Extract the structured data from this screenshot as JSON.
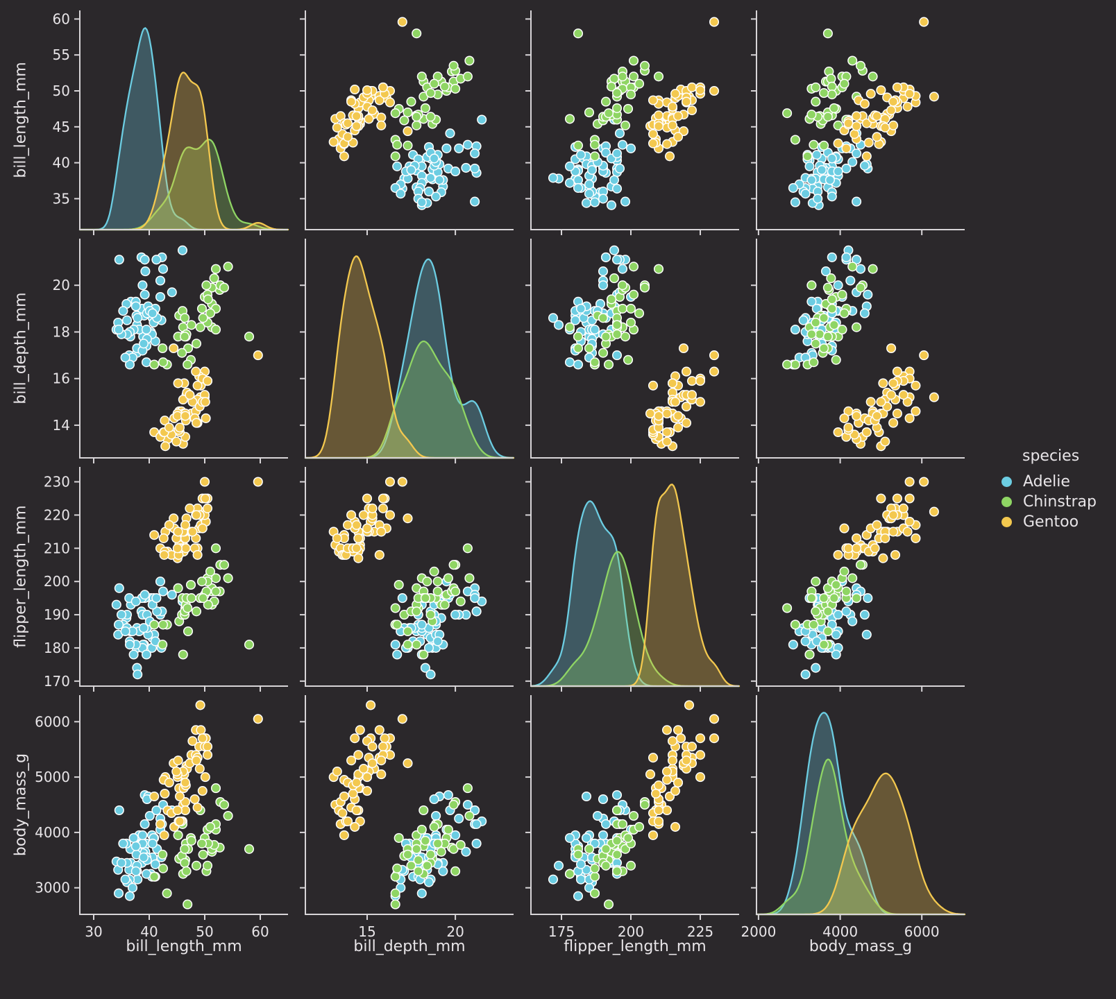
{
  "figure": {
    "background": "#2b282b",
    "text_color": "#e8e5e8",
    "axis_color": "#d8d5d8",
    "marker_edge": "#ffffff"
  },
  "legend": {
    "title": "species",
    "items": [
      {
        "label": "Adelie",
        "color": "#6ccde2"
      },
      {
        "label": "Chinstrap",
        "color": "#8fd564"
      },
      {
        "label": "Gentoo",
        "color": "#f3c84f"
      }
    ]
  },
  "chart_data": {
    "type": "scatter-matrix",
    "note": "seaborn-style pairplot of penguins dataset; diagonal = kde per species, off-diagonal = scatter; row variable = y, column variable = x",
    "diagonal": "kde",
    "grid": false,
    "legend_position": "right",
    "variables": [
      {
        "key": "bill_length_mm",
        "label": "bill_length_mm",
        "xlim": [
          27.5,
          65
        ],
        "ylim": [
          30.7,
          61.2
        ],
        "xticks": [
          30,
          40,
          50,
          60
        ],
        "yticks": [
          35,
          40,
          45,
          50,
          55,
          60
        ]
      },
      {
        "key": "bill_depth_mm",
        "label": "bill_depth_mm",
        "xlim": [
          11.5,
          23.3
        ],
        "ylim": [
          12.6,
          22.0
        ],
        "xticks": [
          15,
          20
        ],
        "yticks": [
          14,
          16,
          18,
          20
        ]
      },
      {
        "key": "flipper_length_mm",
        "label": "flipper_length_mm",
        "xlim": [
          164,
          239
        ],
        "ylim": [
          168.5,
          234.5
        ],
        "xticks": [
          175,
          200,
          225
        ],
        "yticks": [
          170,
          180,
          190,
          200,
          210,
          220,
          230
        ]
      },
      {
        "key": "body_mass_g",
        "label": "body_mass_g",
        "xlim": [
          1950,
          7050
        ],
        "ylim": [
          2520,
          6480
        ],
        "xticks": [
          2000,
          4000,
          6000
        ],
        "yticks": [
          3000,
          4000,
          5000,
          6000
        ]
      }
    ],
    "series": [
      {
        "name": "Adelie",
        "color": "#6ccde2",
        "points": [
          [
            39.1,
            18.7,
            181,
            3750
          ],
          [
            39.5,
            17.4,
            186,
            3800
          ],
          [
            40.3,
            18.0,
            195,
            3250
          ],
          [
            36.7,
            19.3,
            193,
            3450
          ],
          [
            39.3,
            20.6,
            190,
            3650
          ],
          [
            38.9,
            17.8,
            181,
            3625
          ],
          [
            39.2,
            19.6,
            195,
            4675
          ],
          [
            34.1,
            18.1,
            193,
            3475
          ],
          [
            42.0,
            20.2,
            190,
            4250
          ],
          [
            37.8,
            17.1,
            186,
            3300
          ],
          [
            37.8,
            17.3,
            180,
            3700
          ],
          [
            41.1,
            17.6,
            182,
            3200
          ],
          [
            38.6,
            21.2,
            191,
            3800
          ],
          [
            34.6,
            21.1,
            198,
            4400
          ],
          [
            36.6,
            17.8,
            185,
            3700
          ],
          [
            38.7,
            19.0,
            195,
            3450
          ],
          [
            42.5,
            20.7,
            197,
            4500
          ],
          [
            34.4,
            18.4,
            184,
            3325
          ],
          [
            46.0,
            21.5,
            194,
            4200
          ],
          [
            37.8,
            18.3,
            174,
            3400
          ],
          [
            37.7,
            18.7,
            180,
            3600
          ],
          [
            35.9,
            19.2,
            189,
            3800
          ],
          [
            38.2,
            18.1,
            185,
            3950
          ],
          [
            38.8,
            17.2,
            180,
            3800
          ],
          [
            35.3,
            18.9,
            187,
            3800
          ],
          [
            40.6,
            18.6,
            183,
            3550
          ],
          [
            40.5,
            17.9,
            187,
            3200
          ],
          [
            37.9,
            18.6,
            172,
            3150
          ],
          [
            40.5,
            18.9,
            180,
            3950
          ],
          [
            39.5,
            16.7,
            178,
            3250
          ],
          [
            37.2,
            18.1,
            178,
            3900
          ],
          [
            39.5,
            18.1,
            186,
            3550
          ],
          [
            40.9,
            18.9,
            184,
            3900
          ],
          [
            36.4,
            17.0,
            195,
            3325
          ],
          [
            39.2,
            21.1,
            196,
            4150
          ],
          [
            38.8,
            20.0,
            190,
            3950
          ],
          [
            42.2,
            18.5,
            180,
            3550
          ],
          [
            37.6,
            19.3,
            181,
            3300
          ],
          [
            39.8,
            19.1,
            184,
            4650
          ],
          [
            36.5,
            18.0,
            182,
            3150
          ],
          [
            40.8,
            18.4,
            195,
            3900
          ],
          [
            36.0,
            18.5,
            186,
            3100
          ],
          [
            44.1,
            19.7,
            196,
            4400
          ],
          [
            37.0,
            16.9,
            185,
            3000
          ],
          [
            39.6,
            18.8,
            190,
            4600
          ],
          [
            41.1,
            19.0,
            182,
            3425
          ],
          [
            36.0,
            17.9,
            190,
            3450
          ],
          [
            42.3,
            21.2,
            191,
            4150
          ],
          [
            39.6,
            17.7,
            186,
            3500
          ],
          [
            40.1,
            18.9,
            188,
            4300
          ],
          [
            35.0,
            17.9,
            190,
            3450
          ],
          [
            42.0,
            19.5,
            200,
            4050
          ],
          [
            34.5,
            18.1,
            187,
            2900
          ],
          [
            41.4,
            18.6,
            191,
            3700
          ],
          [
            39.0,
            17.5,
            186,
            3550
          ],
          [
            40.6,
            18.8,
            193,
            3800
          ],
          [
            36.5,
            16.6,
            181,
            2850
          ],
          [
            37.6,
            19.1,
            194,
            3750
          ],
          [
            35.7,
            16.9,
            185,
            3150
          ],
          [
            41.3,
            21.1,
            195,
            4400
          ]
        ]
      },
      {
        "name": "Chinstrap",
        "color": "#8fd564",
        "points": [
          [
            46.5,
            17.9,
            192,
            3500
          ],
          [
            50.0,
            19.5,
            196,
            3900
          ],
          [
            51.3,
            19.2,
            193,
            3650
          ],
          [
            45.4,
            18.7,
            188,
            3525
          ],
          [
            52.7,
            19.8,
            197,
            3725
          ],
          [
            45.2,
            17.8,
            198,
            3950
          ],
          [
            46.1,
            18.2,
            178,
            3250
          ],
          [
            51.3,
            18.2,
            197,
            3750
          ],
          [
            46.0,
            18.9,
            195,
            4150
          ],
          [
            51.3,
            19.9,
            198,
            3700
          ],
          [
            46.6,
            17.8,
            193,
            3800
          ],
          [
            51.7,
            20.3,
            194,
            3775
          ],
          [
            47.0,
            17.3,
            185,
            3700
          ],
          [
            52.0,
            18.1,
            201,
            4050
          ],
          [
            45.9,
            17.1,
            190,
            3575
          ],
          [
            50.5,
            19.6,
            201,
            4050
          ],
          [
            50.3,
            20.0,
            197,
            3300
          ],
          [
            58.0,
            17.8,
            181,
            3700
          ],
          [
            46.4,
            18.6,
            190,
            3450
          ],
          [
            49.2,
            18.2,
            195,
            4400
          ],
          [
            42.4,
            17.3,
            181,
            3600
          ],
          [
            48.5,
            17.5,
            191,
            3400
          ],
          [
            43.2,
            16.6,
            187,
            2900
          ],
          [
            50.6,
            19.4,
            193,
            3800
          ],
          [
            46.7,
            17.9,
            195,
            3300
          ],
          [
            52.0,
            19.0,
            197,
            4150
          ],
          [
            50.5,
            18.4,
            200,
            3400
          ],
          [
            49.5,
            19.0,
            200,
            3800
          ],
          [
            46.4,
            17.8,
            191,
            3700
          ],
          [
            52.8,
            20.0,
            205,
            4550
          ],
          [
            40.9,
            16.6,
            187,
            3200
          ],
          [
            54.2,
            20.8,
            201,
            4300
          ],
          [
            42.5,
            16.7,
            187,
            3350
          ],
          [
            51.0,
            18.8,
            203,
            4100
          ],
          [
            49.7,
            18.6,
            195,
            3600
          ],
          [
            47.5,
            16.8,
            199,
            3900
          ],
          [
            47.6,
            18.3,
            195,
            3850
          ],
          [
            52.0,
            20.7,
            210,
            4800
          ],
          [
            46.9,
            16.6,
            192,
            2700
          ],
          [
            53.5,
            19.9,
            205,
            4500
          ]
        ]
      },
      {
        "name": "Gentoo",
        "color": "#f3c84f",
        "points": [
          [
            46.1,
            13.2,
            211,
            4500
          ],
          [
            50.0,
            16.3,
            230,
            5700
          ],
          [
            48.7,
            14.1,
            210,
            4450
          ],
          [
            50.0,
            15.2,
            218,
            5700
          ],
          [
            47.6,
            14.5,
            215,
            5400
          ],
          [
            46.5,
            13.5,
            210,
            4550
          ],
          [
            45.4,
            14.6,
            211,
            4800
          ],
          [
            46.7,
            15.3,
            219,
            5200
          ],
          [
            43.3,
            13.4,
            209,
            4400
          ],
          [
            46.8,
            15.4,
            215,
            5150
          ],
          [
            40.9,
            13.7,
            214,
            4650
          ],
          [
            49.0,
            16.1,
            216,
            5550
          ],
          [
            45.5,
            13.7,
            214,
            4650
          ],
          [
            48.4,
            14.6,
            213,
            5850
          ],
          [
            45.8,
            14.6,
            210,
            4200
          ],
          [
            49.3,
            15.7,
            217,
            5850
          ],
          [
            42.0,
            13.5,
            210,
            4150
          ],
          [
            49.2,
            15.2,
            221,
            6300
          ],
          [
            46.2,
            14.5,
            209,
            4800
          ],
          [
            48.7,
            15.1,
            222,
            5350
          ],
          [
            50.2,
            14.3,
            218,
            5700
          ],
          [
            45.1,
            14.5,
            215,
            5000
          ],
          [
            46.5,
            14.5,
            213,
            4400
          ],
          [
            46.3,
            15.8,
            215,
            5050
          ],
          [
            42.9,
            13.1,
            215,
            5000
          ],
          [
            46.1,
            15.1,
            215,
            5100
          ],
          [
            44.5,
            14.3,
            216,
            4100
          ],
          [
            47.8,
            15.0,
            215,
            5650
          ],
          [
            48.2,
            14.3,
            210,
            4600
          ],
          [
            50.0,
            15.3,
            220,
            5550
          ],
          [
            47.3,
            15.3,
            222,
            5250
          ],
          [
            42.8,
            14.2,
            209,
            4700
          ],
          [
            45.1,
            14.5,
            207,
            5050
          ],
          [
            59.6,
            17.0,
            230,
            6050
          ],
          [
            49.1,
            14.8,
            220,
            5150
          ],
          [
            48.4,
            16.3,
            220,
            5400
          ],
          [
            42.6,
            13.7,
            213,
            4950
          ],
          [
            44.4,
            17.3,
            219,
            5250
          ],
          [
            44.0,
            13.6,
            208,
            4350
          ],
          [
            48.7,
            15.7,
            208,
            5350
          ],
          [
            42.7,
            13.7,
            208,
            3950
          ],
          [
            49.6,
            16.0,
            225,
            5700
          ],
          [
            45.3,
            13.8,
            208,
            4200
          ],
          [
            49.6,
            15.0,
            216,
            4750
          ],
          [
            50.5,
            15.9,
            222,
            5550
          ],
          [
            43.6,
            13.9,
            217,
            4900
          ],
          [
            45.5,
            13.9,
            210,
            4200
          ],
          [
            50.5,
            15.9,
            225,
            5400
          ],
          [
            44.9,
            13.3,
            213,
            5100
          ],
          [
            45.2,
            15.8,
            215,
            5300
          ],
          [
            46.6,
            14.2,
            210,
            4850
          ],
          [
            48.5,
            14.1,
            220,
            5300
          ],
          [
            45.1,
            14.4,
            210,
            4400
          ],
          [
            50.1,
            15.0,
            225,
            5000
          ],
          [
            46.5,
            14.4,
            217,
            4900
          ]
        ]
      }
    ]
  }
}
